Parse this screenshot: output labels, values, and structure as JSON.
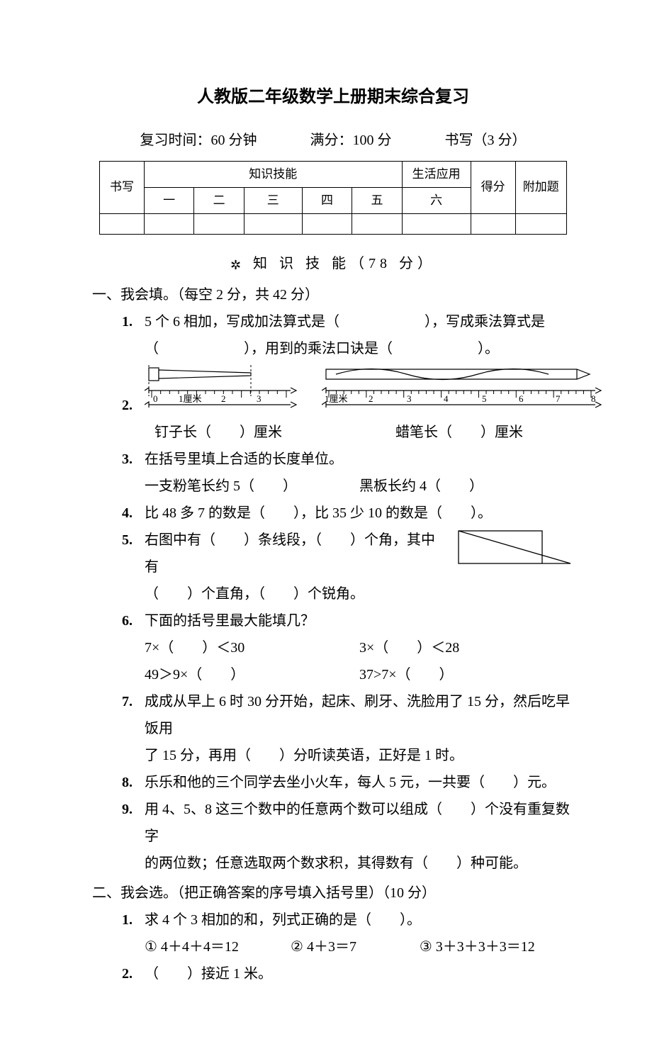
{
  "title": "人教版二年级数学上册期末综合复习",
  "sub": {
    "time_label": "复习时间：60 分钟",
    "full_label": "满分：100 分",
    "writing_label": "书写（3 分）"
  },
  "scoretable": {
    "row1": {
      "c0": "书写",
      "c1": "知识技能",
      "c2": "生活应用",
      "c3": "得分",
      "c4": "附加题"
    },
    "row2": {
      "c0": "一",
      "c1": "二",
      "c2": "三",
      "c3": "四",
      "c4": "五",
      "c5": "六"
    }
  },
  "banner_a": {
    "icon": "✲",
    "text": "知 识 技 能（78 分）"
  },
  "sec1": {
    "heading": "一、我会填。（每空 2 分，共 42 分）",
    "q1": {
      "num": "1.",
      "line1": "5 个 6 相加，写成加法算式是（　　　　　　），写成乘法算式是",
      "line2": "（　　　　　　），用到的乘法口诀是（　　　　　　）。"
    },
    "q2": {
      "num": "2.",
      "rulerA": {
        "labels": [
          "0",
          "1厘米",
          "2",
          "3"
        ],
        "tickcount": 16
      },
      "rulerB": {
        "labels": [
          "1厘米",
          "2",
          "3",
          "4",
          "5",
          "6",
          "7",
          "8"
        ],
        "tickcount": 36
      },
      "capA": "钉子长（　　）厘米",
      "capB": "蜡笔长（　　）厘米"
    },
    "q3": {
      "num": "3.",
      "head": "在括号里填上合适的长度单位。",
      "a": "一支粉笔长约 5（　　）",
      "b": "黑板长约 4（　　）"
    },
    "q4": {
      "num": "4.",
      "text": "比 48 多 7 的数是（　　），比 35 少 10 的数是（　　）。"
    },
    "q5": {
      "num": "5.",
      "line1": "右图中有（　　）条线段，（　　）个角，其中有",
      "line2": "（　　）个直角，（　　）个锐角。"
    },
    "q6": {
      "num": "6.",
      "head": "下面的括号里最大能填几？",
      "a": "7×（　　）＜30",
      "b": "3×（　　）＜28",
      "c": "49＞9×（　　）",
      "d": "37>7×（　　）"
    },
    "q7": {
      "num": "7.",
      "line1": "成成从早上 6 时 30 分开始，起床、刷牙、洗脸用了 15 分，然后吃早饭用",
      "line2": "了 15 分，再用（　　）分听读英语，正好是 1 时。"
    },
    "q8": {
      "num": "8.",
      "text": "乐乐和他的三个同学去坐小火车，每人 5 元，一共要（　　）元。"
    },
    "q9": {
      "num": "9.",
      "line1": "用 4、5、8 这三个数中的任意两个数可以组成（　　）个没有重复数字",
      "line2": "的两位数；任意选取两个数求积，其得数有（　　）种可能。"
    }
  },
  "sec2": {
    "heading": "二、我会选。（把正确答案的序号填入括号里）（10 分）",
    "q1": {
      "num": "1.",
      "stem": "求 4 个 3 相加的和，列式正确的是（　　）。",
      "o1": "①  4＋4＋4＝12",
      "o2": "②  4＋3＝7",
      "o3": "③  3＋3＋3＋3＝12"
    },
    "q2": {
      "num": "2.",
      "stem": "（　　）接近 1 米。"
    }
  },
  "colors": {
    "text": "#000000",
    "bg": "#ffffff",
    "line": "#000000"
  }
}
